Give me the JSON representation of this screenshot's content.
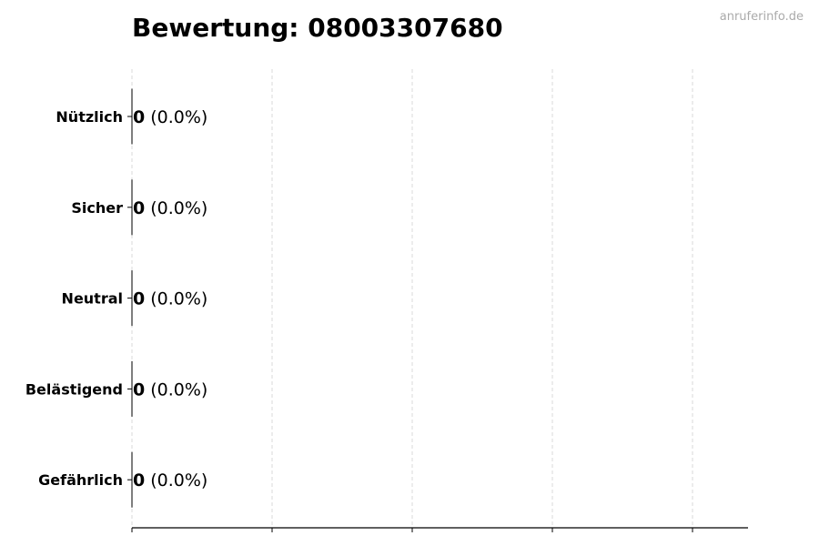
{
  "title": "Bewertung: 08003307680",
  "watermark": "anruferinfo.de",
  "chart_data": {
    "type": "bar",
    "orientation": "horizontal",
    "title": "Bewertung: 08003307680",
    "categories": [
      "Nützlich",
      "Sicher",
      "Neutral",
      "Belästigend",
      "Gefährlich"
    ],
    "values": [
      0,
      0,
      0,
      0,
      0
    ],
    "labels": [
      {
        "count": "0",
        "percent": "(0.0%)"
      },
      {
        "count": "0",
        "percent": "(0.0%)"
      },
      {
        "count": "0",
        "percent": "(0.0%)"
      },
      {
        "count": "0",
        "percent": "(0.0%)"
      },
      {
        "count": "0",
        "percent": "(0.0%)"
      }
    ],
    "xlabel": "",
    "ylabel": "",
    "grid": "vertical dashed",
    "x_tick_labels_shown": false,
    "colors": {
      "bar_edge": "#000000",
      "grid": "#d9d9d9"
    }
  }
}
